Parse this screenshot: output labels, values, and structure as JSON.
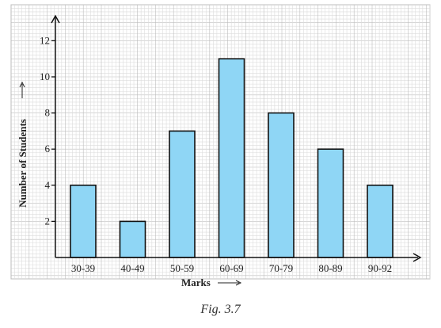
{
  "chart_data": {
    "type": "bar",
    "categories": [
      "30-39",
      "40-49",
      "50-59",
      "60-69",
      "70-79",
      "80-89",
      "90-92"
    ],
    "values": [
      4,
      2,
      7,
      11,
      8,
      6,
      4
    ],
    "xlabel": "Marks",
    "ylabel": "Number of Students",
    "ylim": [
      0,
      13
    ],
    "yticks": [
      2,
      4,
      6,
      8,
      10,
      12
    ],
    "grid": true,
    "colors": {
      "bar_fill": "#8fd6f5",
      "bar_stroke": "#111111",
      "grid_minor": "#dcdcdc",
      "grid_major": "#bdbdbd",
      "axis": "#111111"
    }
  },
  "caption": "Fig. 3.7"
}
